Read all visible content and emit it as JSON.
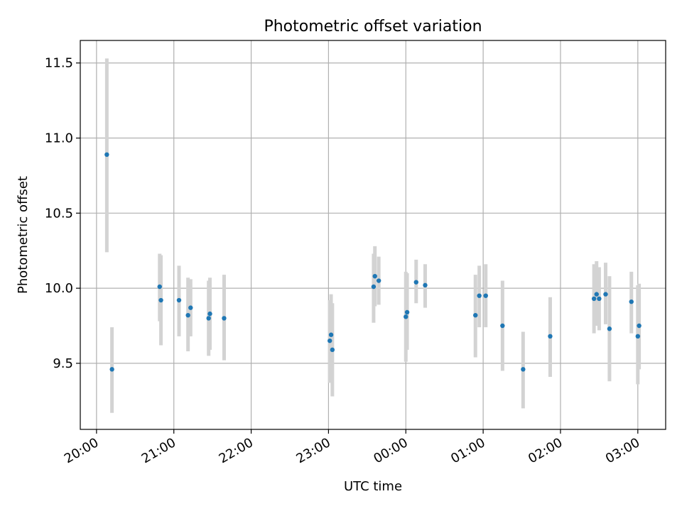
{
  "chart_data": {
    "type": "scatter",
    "title": "Photometric offset variation",
    "xlabel": "UTC time",
    "ylabel": "Photometric offset",
    "x_tick_labels": [
      "20:00",
      "21:00",
      "22:00",
      "23:00",
      "00:00",
      "01:00",
      "02:00",
      "03:00"
    ],
    "x_ticks_hours": [
      0,
      1,
      2,
      3,
      4,
      5,
      6,
      7
    ],
    "y_ticks": [
      9.5,
      10.0,
      10.5,
      11.0,
      11.5
    ],
    "x_range_hours_after_2000": [
      -0.21,
      7.36
    ],
    "ylim": [
      9.06,
      11.65
    ],
    "grid": true,
    "marker_color": "#1f77b4",
    "errorbar_color": "#d3d3d3",
    "points": [
      {
        "t": "20:08",
        "y": 10.89,
        "lo": 10.24,
        "hi": 11.53
      },
      {
        "t": "20:12",
        "y": 9.46,
        "lo": 9.17,
        "hi": 9.74
      },
      {
        "t": "20:49",
        "y": 10.01,
        "lo": 9.78,
        "hi": 10.23
      },
      {
        "t": "20:50",
        "y": 9.92,
        "lo": 9.62,
        "hi": 10.22
      },
      {
        "t": "21:04",
        "y": 9.92,
        "lo": 9.68,
        "hi": 10.15
      },
      {
        "t": "21:11",
        "y": 9.82,
        "lo": 9.58,
        "hi": 10.07
      },
      {
        "t": "21:13",
        "y": 9.87,
        "lo": 9.68,
        "hi": 10.06
      },
      {
        "t": "21:27",
        "y": 9.8,
        "lo": 9.55,
        "hi": 10.05
      },
      {
        "t": "21:28",
        "y": 9.83,
        "lo": 9.59,
        "hi": 10.07
      },
      {
        "t": "21:39",
        "y": 9.8,
        "lo": 9.52,
        "hi": 10.09
      },
      {
        "t": "23:01",
        "y": 9.65,
        "lo": 9.37,
        "hi": 9.92
      },
      {
        "t": "23:02",
        "y": 9.69,
        "lo": 9.43,
        "hi": 9.96
      },
      {
        "t": "23:03",
        "y": 9.59,
        "lo": 9.28,
        "hi": 9.9
      },
      {
        "t": "23:35",
        "y": 10.01,
        "lo": 9.77,
        "hi": 10.23
      },
      {
        "t": "23:36",
        "y": 10.08,
        "lo": 9.88,
        "hi": 10.28
      },
      {
        "t": "23:39",
        "y": 10.05,
        "lo": 9.89,
        "hi": 10.21
      },
      {
        "t": "00:00",
        "y": 9.81,
        "lo": 9.51,
        "hi": 10.11
      },
      {
        "t": "00:01",
        "y": 9.84,
        "lo": 9.59,
        "hi": 10.1
      },
      {
        "t": "00:08",
        "y": 10.04,
        "lo": 9.9,
        "hi": 10.19
      },
      {
        "t": "00:15",
        "y": 10.02,
        "lo": 9.87,
        "hi": 10.16
      },
      {
        "t": "00:54",
        "y": 9.82,
        "lo": 9.54,
        "hi": 10.09
      },
      {
        "t": "00:57",
        "y": 9.95,
        "lo": 9.74,
        "hi": 10.15
      },
      {
        "t": "01:02",
        "y": 9.95,
        "lo": 9.74,
        "hi": 10.16
      },
      {
        "t": "01:15",
        "y": 9.75,
        "lo": 9.45,
        "hi": 10.05
      },
      {
        "t": "01:31",
        "y": 9.46,
        "lo": 9.2,
        "hi": 9.71
      },
      {
        "t": "01:52",
        "y": 9.68,
        "lo": 9.41,
        "hi": 9.94
      },
      {
        "t": "02:26",
        "y": 9.93,
        "lo": 9.7,
        "hi": 10.16
      },
      {
        "t": "02:28",
        "y": 9.96,
        "lo": 9.75,
        "hi": 10.18
      },
      {
        "t": "02:30",
        "y": 9.93,
        "lo": 9.72,
        "hi": 10.14
      },
      {
        "t": "02:35",
        "y": 9.96,
        "lo": 9.76,
        "hi": 10.17
      },
      {
        "t": "02:38",
        "y": 9.73,
        "lo": 9.38,
        "hi": 10.08
      },
      {
        "t": "02:55",
        "y": 9.91,
        "lo": 9.7,
        "hi": 10.11
      },
      {
        "t": "03:00",
        "y": 9.68,
        "lo": 9.36,
        "hi": 10.02
      },
      {
        "t": "03:01",
        "y": 9.75,
        "lo": 9.46,
        "hi": 10.03
      }
    ]
  }
}
